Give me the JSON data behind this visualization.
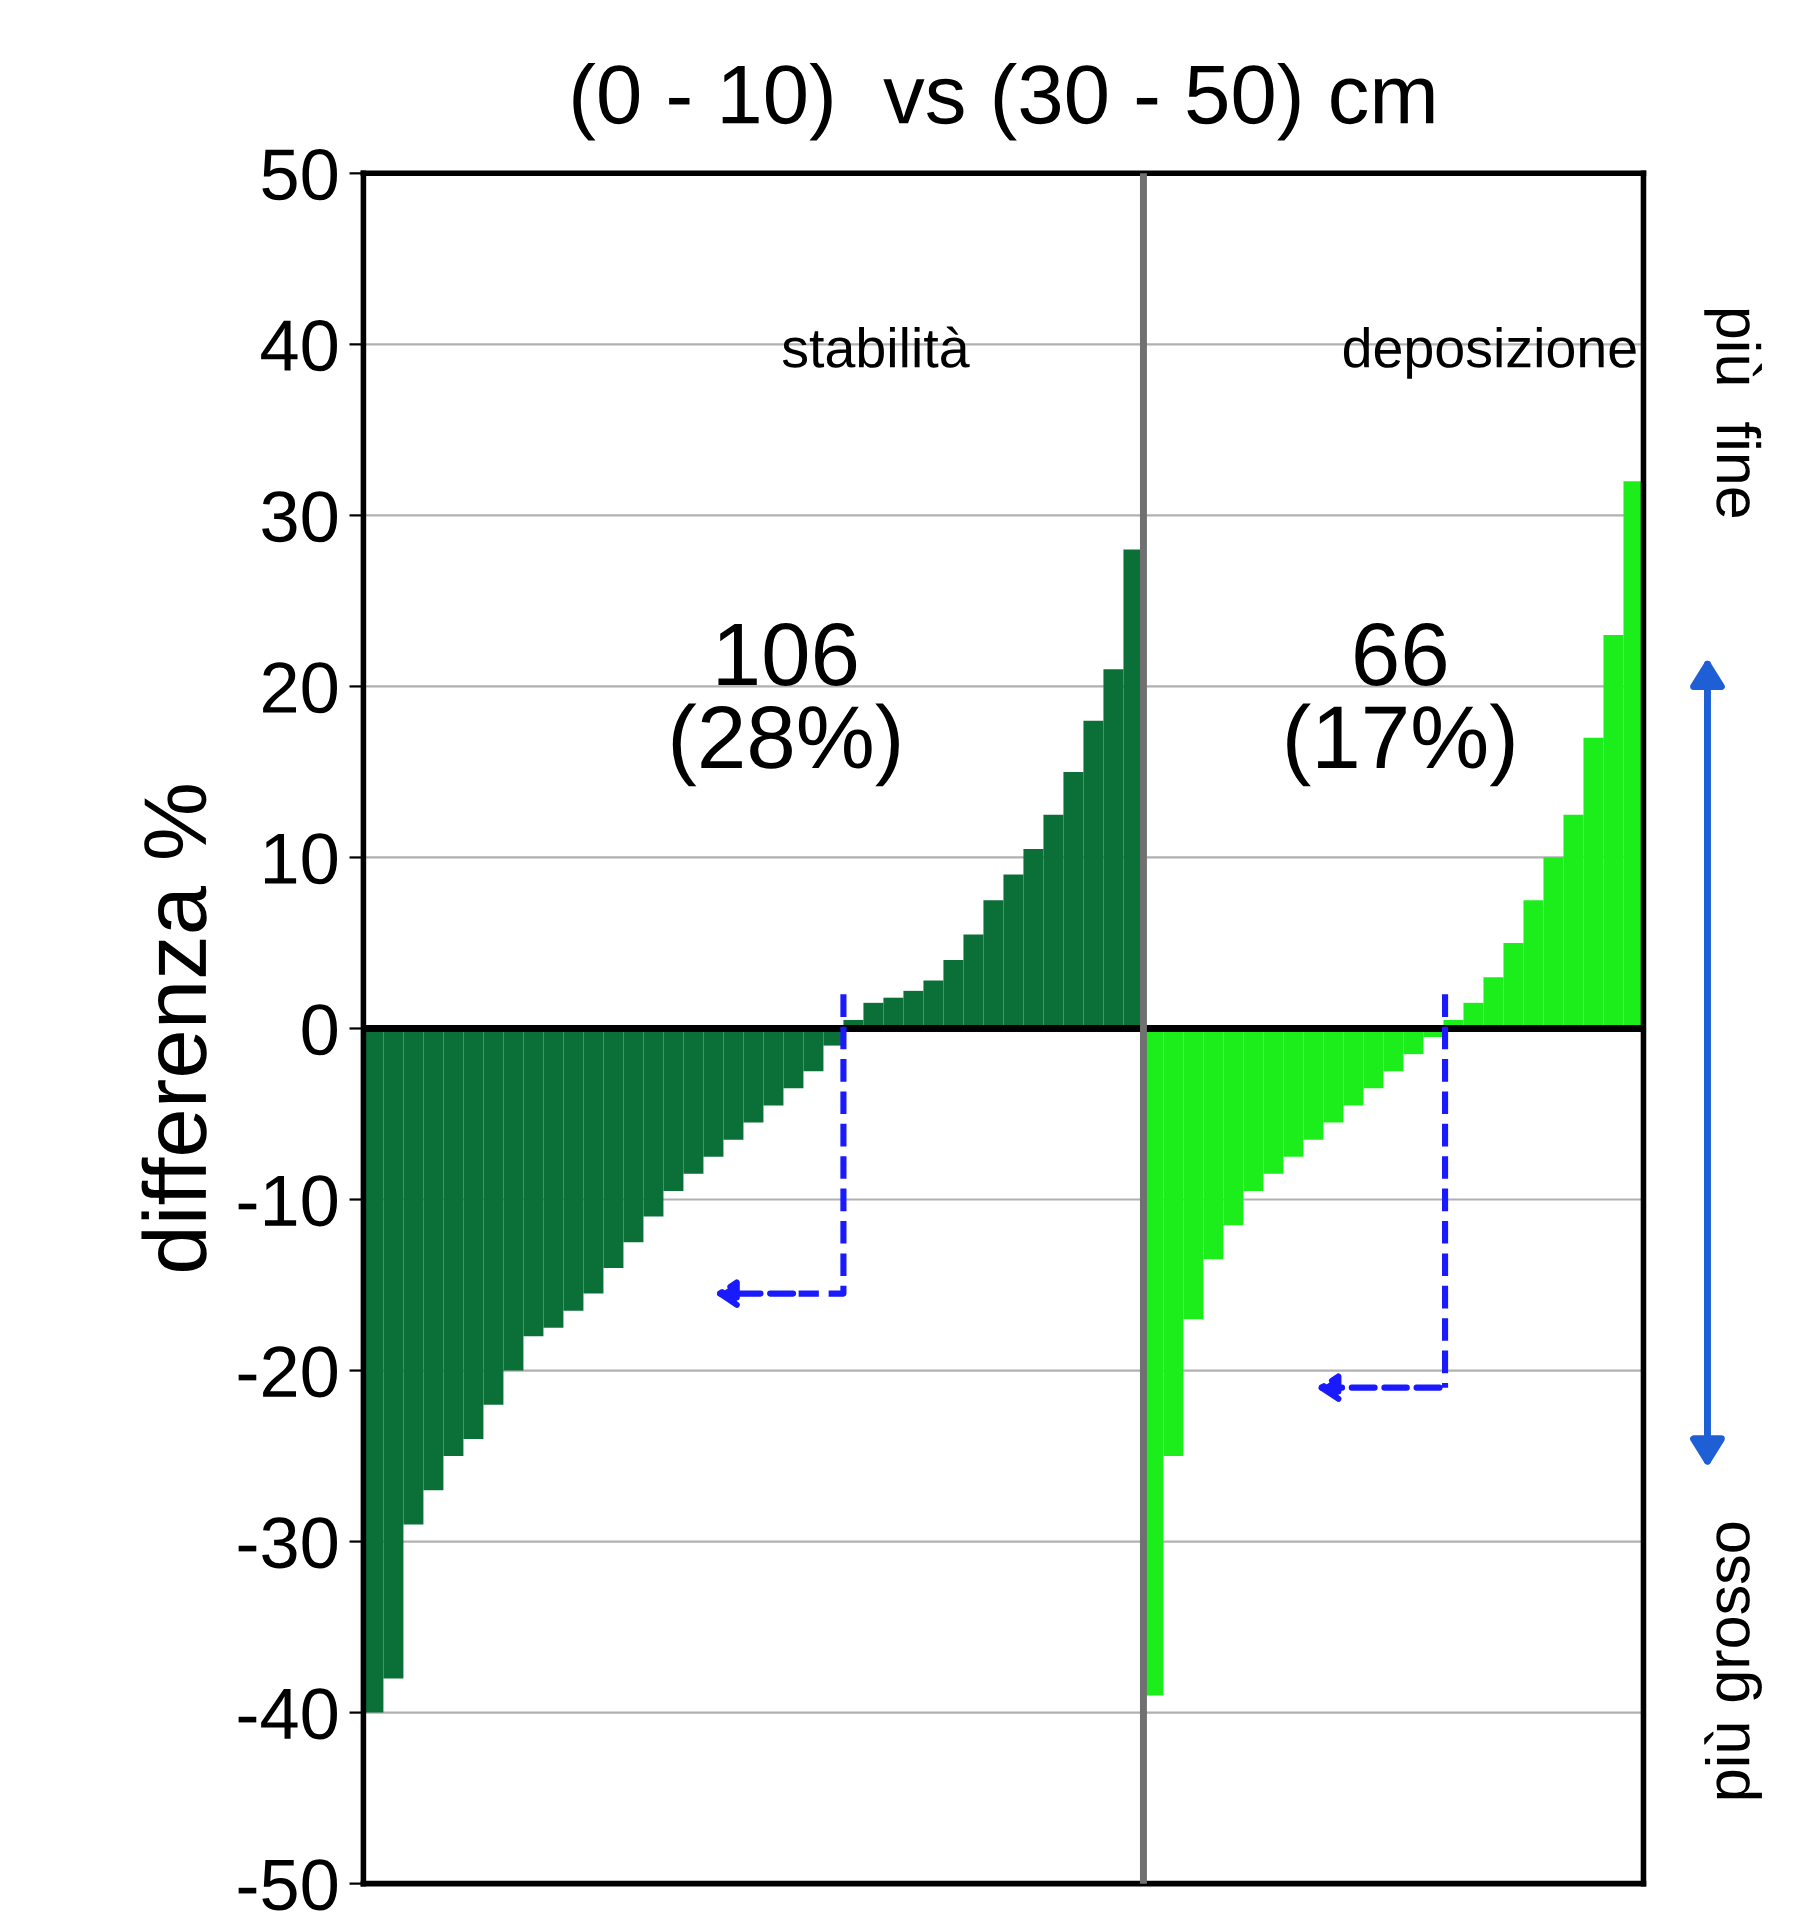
{
  "chart_data": {
    "type": "bar",
    "title": "(0 - 10)  vs (30 - 50) cm",
    "ylabel": "differenza %",
    "categories": [
      null,
      null,
      null,
      null,
      null,
      null,
      null,
      null,
      null,
      null,
      null,
      null,
      null,
      null,
      null,
      null,
      null,
      null,
      null,
      null,
      null,
      null,
      null,
      null,
      null,
      null,
      null,
      null,
      null,
      null,
      null,
      null,
      null,
      null,
      null,
      null,
      null,
      null,
      null,
      null,
      null,
      null,
      null,
      null,
      null,
      null,
      null,
      null,
      null,
      null,
      null,
      null,
      null,
      null,
      null,
      null,
      null,
      null,
      null,
      null,
      null,
      null,
      null,
      null
    ],
    "series": [
      {
        "color": "#0b7038",
        "values": [
          -40,
          -38,
          -29,
          -27,
          -25,
          -24,
          -22,
          -20,
          -18,
          -17.5,
          -16.5,
          -15.5,
          -14,
          -12.5,
          -11,
          -9.5,
          -8.5,
          -7.5,
          -6.5,
          -5.5,
          -4.5,
          -3.5,
          -2.5,
          -1,
          0.5,
          1.5,
          1.8,
          2.2,
          2.8,
          4,
          5.5,
          7.5,
          9,
          10.5,
          12.5,
          15,
          18,
          21,
          28,
          null,
          null,
          null,
          null,
          null,
          null,
          null,
          null,
          null,
          null,
          null,
          null,
          null,
          null,
          null,
          null,
          null,
          null,
          null,
          null,
          null,
          null,
          null,
          null,
          null
        ]
      },
      {
        "color": "#1bee1b",
        "values": [
          null,
          null,
          null,
          null,
          null,
          null,
          null,
          null,
          null,
          null,
          null,
          null,
          null,
          null,
          null,
          null,
          null,
          null,
          null,
          null,
          null,
          null,
          null,
          null,
          null,
          null,
          null,
          null,
          null,
          null,
          null,
          null,
          null,
          null,
          null,
          null,
          null,
          null,
          null,
          -39,
          -25,
          -17,
          -13.5,
          -11.5,
          -9.5,
          -8.5,
          -7.5,
          -6.5,
          -5.5,
          -4.5,
          -3.5,
          -2.5,
          -1.5,
          -0.5,
          0.5,
          1.5,
          3,
          5,
          7.5,
          10,
          12.5,
          17,
          23,
          32
        ]
      }
    ],
    "ylim": [
      -50,
      50
    ],
    "yticks": [
      -50,
      -40,
      -30,
      -20,
      -10,
      0,
      10,
      20,
      30,
      40,
      50
    ],
    "grid": "y",
    "ref_lines": [
      {
        "axis": "y",
        "value": 0,
        "color": "#000000"
      }
    ],
    "annotations": [
      "stabilità",
      "deposizione",
      "106\n(28%)",
      "66\n(17%)",
      "più  fine",
      "più grosso"
    ]
  }
}
